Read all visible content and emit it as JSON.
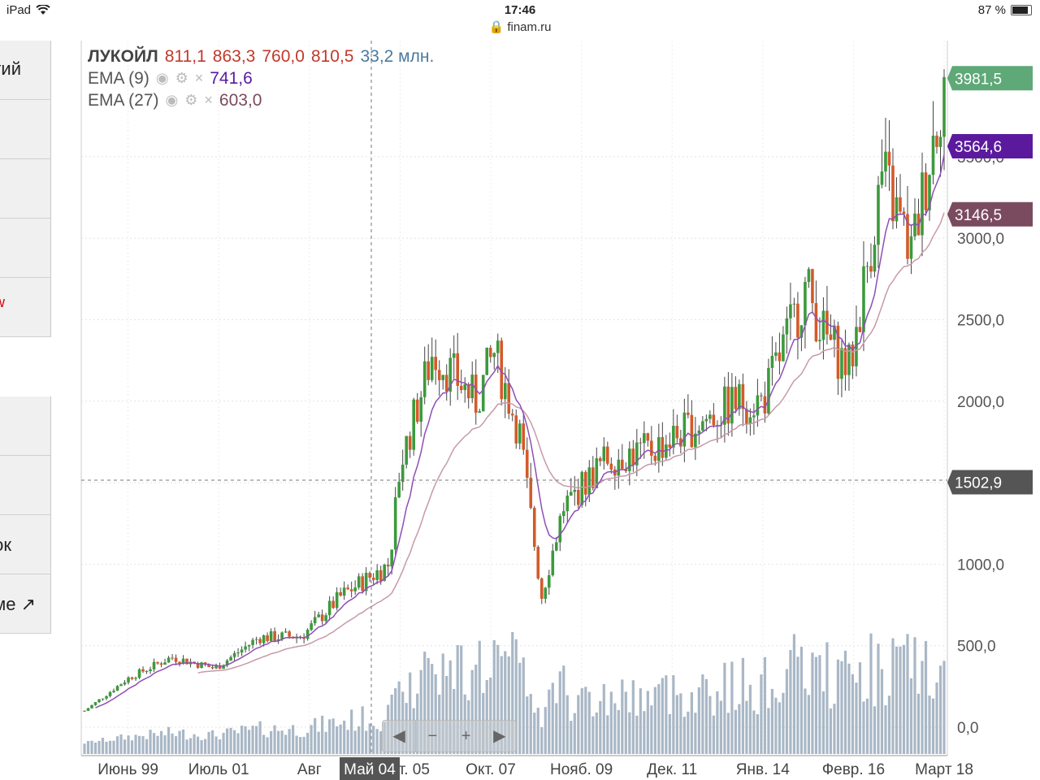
{
  "status_bar": {
    "device": "iPad",
    "time": "17:46",
    "url": "finam.ru",
    "battery": "87 %"
  },
  "sidebar": {
    "items": [
      "тий",
      "",
      "",
      "",
      "w",
      "",
      "",
      "ок",
      "ме ↗"
    ]
  },
  "legend": {
    "ticker": "ЛУКОЙЛ",
    "open": "811,1",
    "high": "863,3",
    "low": "760,0",
    "close": "810,5",
    "volume": "33,2 млн.",
    "ema9_label": "EMA (9)",
    "ema9_value": "741,6",
    "ema27_label": "EMA (27)",
    "ema27_value": "603,0"
  },
  "price_tags": {
    "last": "3981,5",
    "ema9": "3564,6",
    "ema27": "3146,5",
    "crosshair": "1502,9"
  },
  "crosshair_date": "Май 04",
  "nav_buttons": [
    "◀",
    "−",
    "+",
    "▶"
  ],
  "colors": {
    "up": "#3c9a3c",
    "down": "#d35a2a",
    "ema9": "#8e4fb5",
    "ema27": "#c79aa8",
    "volume": "#a9b7c6",
    "tag_last": "#5fa878",
    "tag_ema9": "#5b1a9e",
    "tag_ema27": "#7a4b5e",
    "tag_cross": "#555555"
  },
  "chart_data": {
    "type": "candlestick",
    "title": "ЛУКОЙЛ",
    "x_labels": [
      "Июнь 99",
      "Июль 01",
      "Авг",
      "Сент. 05",
      "Окт. 07",
      "Нояб. 09",
      "Дек. 11",
      "Янв. 14",
      "Февр. 16",
      "Март 18"
    ],
    "y_ticks": [
      "0,0",
      "500,0",
      "1000,0",
      "1500,0",
      "2000,0",
      "2500,0",
      "3000,0",
      "3500,0"
    ],
    "y_values": [
      0,
      500,
      1000,
      1500,
      2000,
      2500,
      3000,
      3500
    ],
    "ylim": [
      0,
      4000
    ],
    "close_approx": {
      "x": [
        "1998-06",
        "1999-06",
        "2000-06",
        "2001-06",
        "2002-06",
        "2003-06",
        "2004-05",
        "2005-06",
        "2005-09",
        "2006-06",
        "2007-06",
        "2007-11",
        "2008-06",
        "2008-12",
        "2009-06",
        "2010-06",
        "2011-06",
        "2012-06",
        "2013-06",
        "2014-01",
        "2015-01",
        "2015-06",
        "2016-01",
        "2016-10",
        "2017-06",
        "2018-03"
      ],
      "y": [
        100,
        300,
        430,
        360,
        550,
        560,
        810,
        1000,
        1600,
        2300,
        2000,
        2300,
        1800,
        800,
        1350,
        1650,
        1700,
        1850,
        2000,
        2000,
        2700,
        2400,
        2200,
        3400,
        2900,
        3981
      ]
    },
    "grid": true,
    "legend": "top-left"
  }
}
